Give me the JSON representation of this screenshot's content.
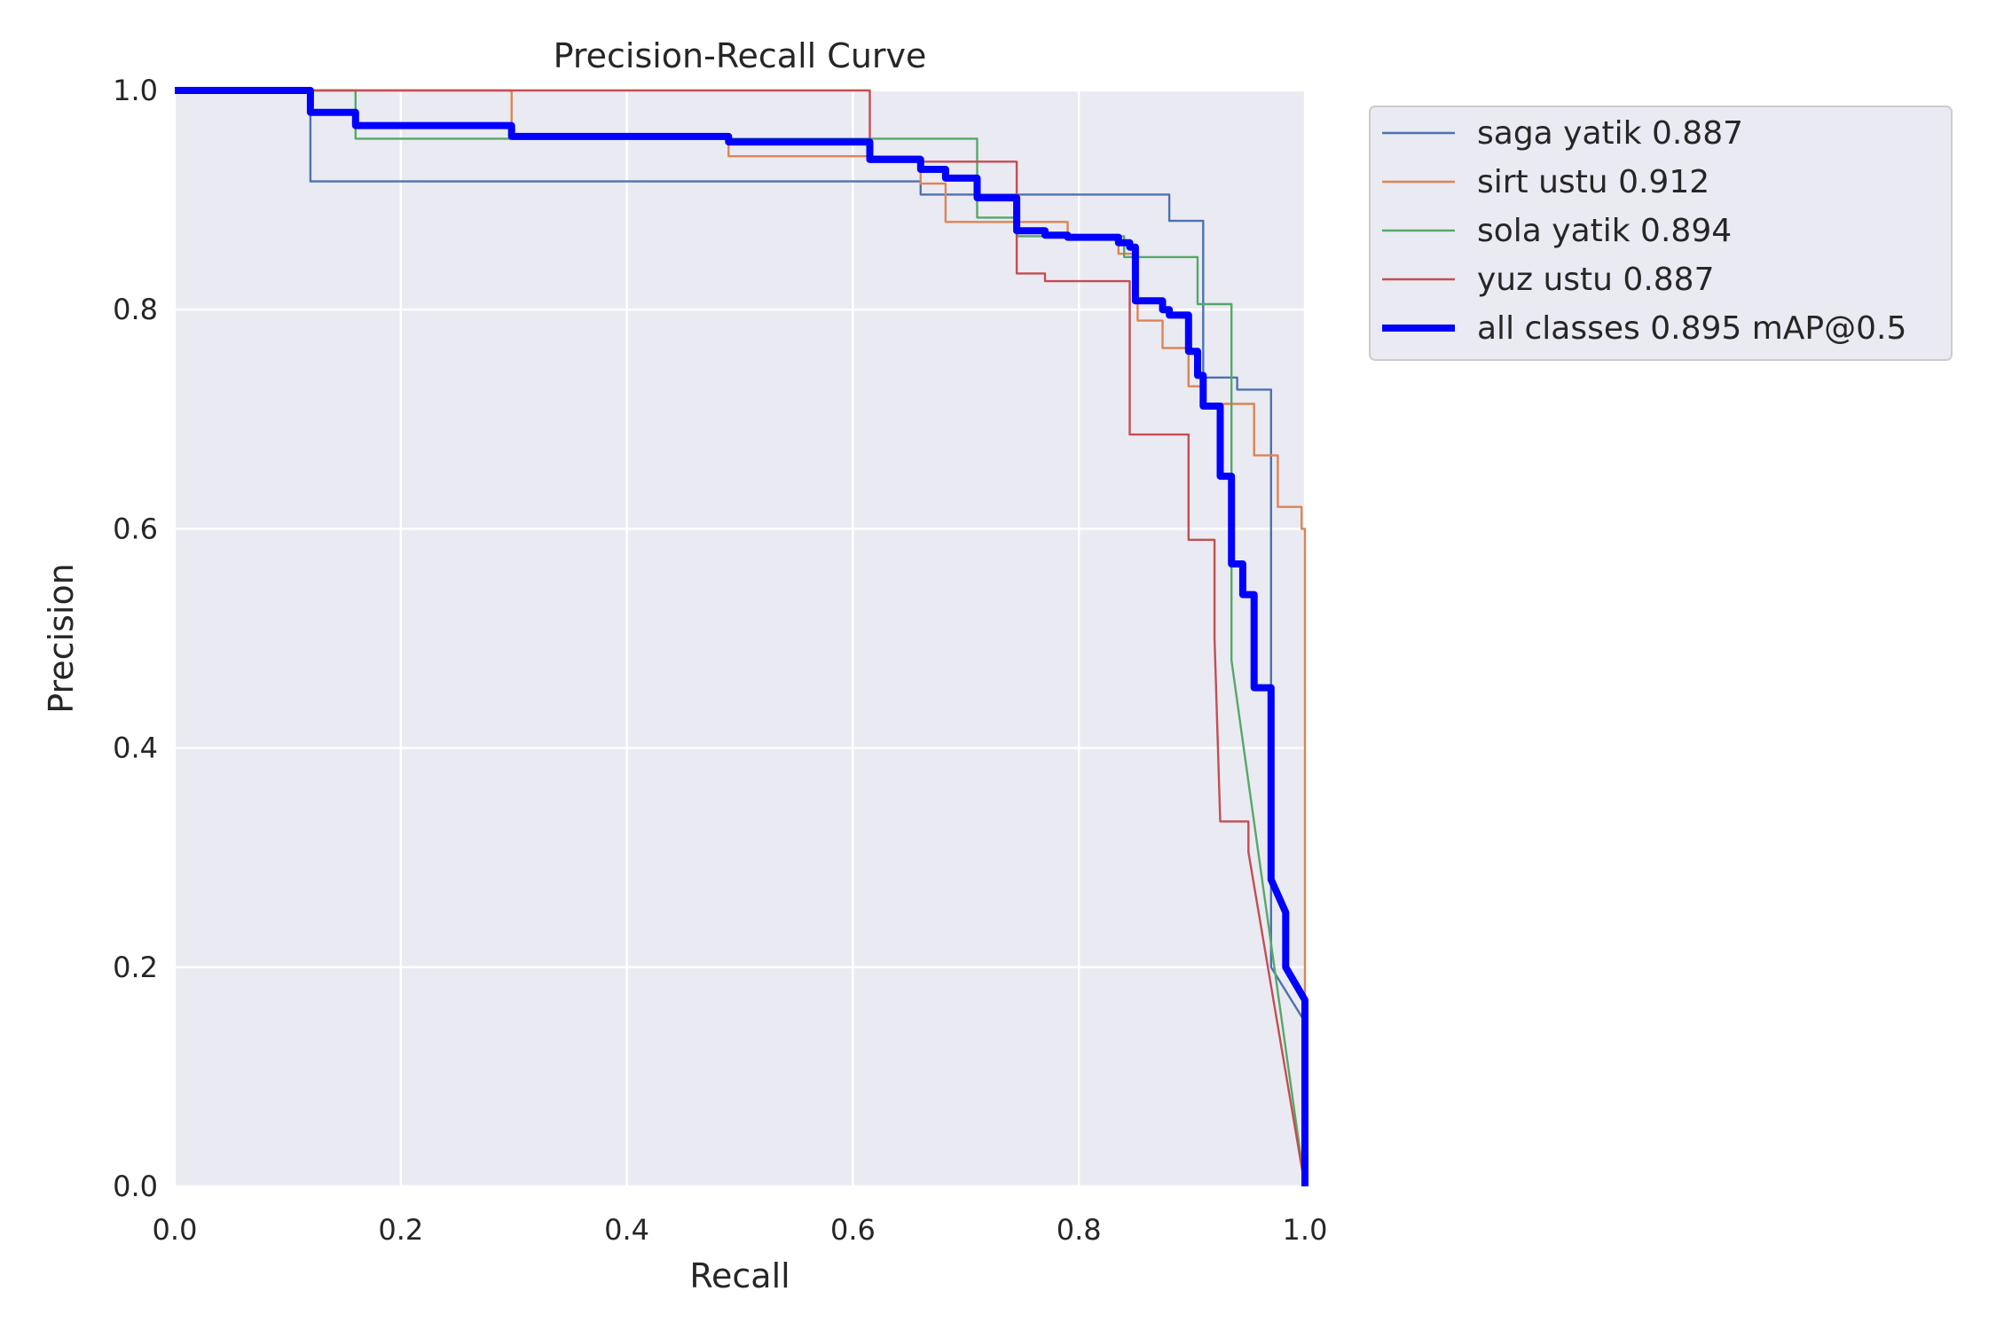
{
  "chart_data": {
    "type": "line",
    "title": "Precision-Recall Curve",
    "xlabel": "Recall",
    "ylabel": "Precision",
    "xlim": [
      0,
      1
    ],
    "ylim": [
      0,
      1
    ],
    "grid": true,
    "legend_position": "outside-top-right",
    "xticks": [
      "0.0",
      "0.2",
      "0.4",
      "0.6",
      "0.8",
      "1.0"
    ],
    "yticks": [
      "0.0",
      "0.2",
      "0.4",
      "0.6",
      "0.8",
      "1.0"
    ],
    "series": [
      {
        "name": "saga yatik 0.887",
        "color": "#4c72b0",
        "x": [
          0,
          0.12,
          0.12,
          0.66,
          0.66,
          0.88,
          0.88,
          0.91,
          0.91,
          0.94,
          0.94,
          0.97,
          0.97,
          1.0,
          1.0
        ],
        "y": [
          1.0,
          1.0,
          0.917,
          0.917,
          0.905,
          0.905,
          0.881,
          0.881,
          0.738,
          0.738,
          0.727,
          0.727,
          0.2,
          0.15,
          0.0
        ]
      },
      {
        "name": "sirt ustu 0.912",
        "color": "#dd8452",
        "x": [
          0,
          0.298,
          0.298,
          0.49,
          0.49,
          0.66,
          0.66,
          0.682,
          0.682,
          0.79,
          0.79,
          0.835,
          0.835,
          0.852,
          0.852,
          0.874,
          0.874,
          0.897,
          0.897,
          0.91,
          0.91,
          0.955,
          0.955,
          0.976,
          0.976,
          0.997,
          0.997,
          1.0,
          1.0
        ],
        "y": [
          1.0,
          1.0,
          0.958,
          0.958,
          0.94,
          0.94,
          0.915,
          0.915,
          0.88,
          0.88,
          0.865,
          0.865,
          0.851,
          0.851,
          0.79,
          0.79,
          0.765,
          0.765,
          0.73,
          0.73,
          0.714,
          0.714,
          0.667,
          0.667,
          0.62,
          0.62,
          0.6,
          0.6,
          0.0
        ]
      },
      {
        "name": "sola yatik 0.894",
        "color": "#55a868",
        "x": [
          0,
          0.16,
          0.16,
          0.71,
          0.71,
          0.745,
          0.745,
          0.84,
          0.84,
          0.905,
          0.905,
          0.935,
          0.935,
          1.0
        ],
        "y": [
          1.0,
          1.0,
          0.956,
          0.956,
          0.884,
          0.884,
          0.867,
          0.867,
          0.848,
          0.848,
          0.805,
          0.805,
          0.48,
          0.0
        ]
      },
      {
        "name": "yuz ustu 0.887",
        "color": "#c44e52",
        "x": [
          0,
          0.615,
          0.615,
          0.745,
          0.745,
          0.77,
          0.77,
          0.845,
          0.845,
          0.897,
          0.897,
          0.92,
          0.92,
          0.925,
          0.925,
          0.95,
          0.95,
          1.0
        ],
        "y": [
          1.0,
          1.0,
          0.935,
          0.935,
          0.833,
          0.833,
          0.826,
          0.826,
          0.686,
          0.686,
          0.59,
          0.59,
          0.5,
          0.333,
          0.333,
          0.333,
          0.305,
          0.0
        ]
      },
      {
        "name": "all classes 0.895 mAP@0.5",
        "color": "#0000ff",
        "x": [
          0,
          0.12,
          0.12,
          0.16,
          0.16,
          0.298,
          0.298,
          0.49,
          0.49,
          0.615,
          0.615,
          0.66,
          0.66,
          0.682,
          0.682,
          0.71,
          0.71,
          0.745,
          0.745,
          0.77,
          0.77,
          0.79,
          0.79,
          0.835,
          0.835,
          0.845,
          0.845,
          0.85,
          0.85,
          0.874,
          0.874,
          0.88,
          0.88,
          0.897,
          0.897,
          0.905,
          0.905,
          0.91,
          0.91,
          0.925,
          0.925,
          0.935,
          0.935,
          0.945,
          0.945,
          0.955,
          0.955,
          0.97,
          0.97,
          0.983,
          0.983,
          1.0,
          1.0
        ],
        "y": [
          1.0,
          1.0,
          0.98,
          0.98,
          0.968,
          0.968,
          0.958,
          0.958,
          0.953,
          0.953,
          0.937,
          0.937,
          0.928,
          0.928,
          0.92,
          0.92,
          0.902,
          0.902,
          0.872,
          0.872,
          0.868,
          0.868,
          0.866,
          0.866,
          0.861,
          0.861,
          0.857,
          0.857,
          0.808,
          0.808,
          0.8,
          0.8,
          0.795,
          0.795,
          0.762,
          0.762,
          0.74,
          0.74,
          0.712,
          0.712,
          0.648,
          0.648,
          0.568,
          0.568,
          0.54,
          0.54,
          0.455,
          0.455,
          0.28,
          0.25,
          0.2,
          0.17,
          0.0
        ]
      }
    ]
  }
}
